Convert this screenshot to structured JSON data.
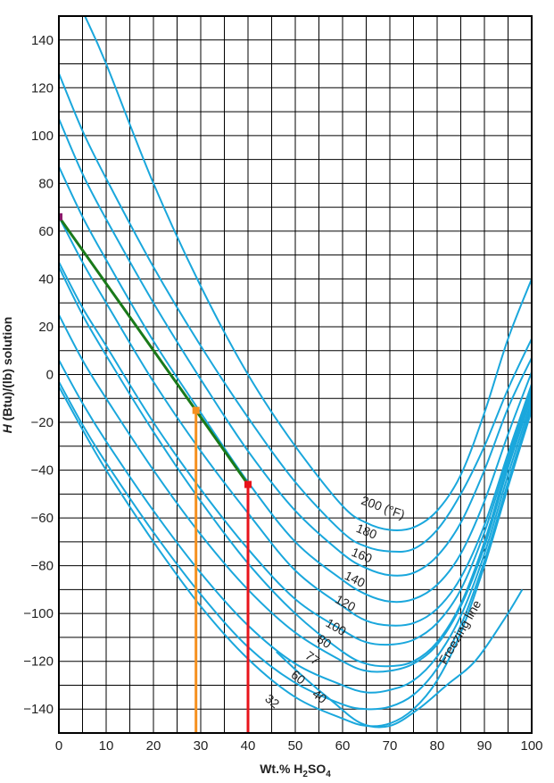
{
  "chart_data": {
    "type": "line",
    "xlabel_prefix": "Wt.% H",
    "xlabel_sub1": "2",
    "xlabel_mid": "SO",
    "xlabel_sub2": "4",
    "ylabel_prefix": "H",
    "ylabel_rest": " (Btu)/(lb) solution",
    "xlim": [
      0,
      100
    ],
    "ylim": [
      -150,
      150
    ],
    "xticks": [
      0,
      10,
      20,
      30,
      40,
      50,
      60,
      70,
      80,
      90,
      100
    ],
    "yticks": [
      140,
      120,
      100,
      80,
      60,
      40,
      20,
      0,
      -20,
      -40,
      -60,
      -80,
      -100,
      -120,
      -140
    ],
    "grid": true,
    "colors": {
      "isotherm": "#1aa7dc",
      "mix_line": "#1a7a1a",
      "orange": "#f5901e",
      "red": "#e8141b",
      "start_point": "#8b1a6b",
      "grid": "#000000"
    },
    "series": [
      {
        "name": "200 (°F)",
        "x": [
          5.5,
          10,
          20,
          30,
          40,
          50,
          60,
          65,
          70,
          75,
          80,
          85,
          90,
          95,
          100
        ],
        "y": [
          150,
          130,
          80,
          37,
          0,
          -30,
          -55,
          -62,
          -65,
          -64,
          -57,
          -42,
          -16,
          15,
          40
        ]
      },
      {
        "name": "180",
        "x": [
          0,
          5,
          10,
          20,
          30,
          40,
          50,
          60,
          65,
          70,
          75,
          80,
          85,
          90,
          95,
          100
        ],
        "y": [
          126,
          102,
          82,
          45,
          12,
          -18,
          -45,
          -66,
          -72,
          -74,
          -73,
          -65,
          -50,
          -30,
          -6,
          15
        ]
      },
      {
        "name": "160",
        "x": [
          0,
          5,
          10,
          20,
          30,
          40,
          50,
          60,
          65,
          70,
          75,
          80,
          85,
          90,
          95,
          100
        ],
        "y": [
          107,
          84,
          65,
          30,
          -2,
          -32,
          -57,
          -75,
          -81,
          -84,
          -83,
          -76,
          -62,
          -40,
          -14,
          7
        ]
      },
      {
        "name": "140",
        "x": [
          0,
          5,
          10,
          20,
          30,
          40,
          50,
          60,
          65,
          70,
          75,
          80,
          85,
          90,
          95,
          100
        ],
        "y": [
          87,
          66,
          48,
          14,
          -16,
          -45,
          -70,
          -86,
          -92,
          -95,
          -94,
          -88,
          -75,
          -53,
          -25,
          1
        ]
      },
      {
        "name": "120",
        "x": [
          0,
          5,
          10,
          20,
          30,
          40,
          50,
          60,
          65,
          70,
          75,
          80,
          85,
          90,
          95,
          100
        ],
        "y": [
          66,
          47,
          30,
          -3,
          -32,
          -58,
          -82,
          -97,
          -103,
          -105,
          -104,
          -98,
          -85,
          -63,
          -33,
          -4
        ]
      },
      {
        "name": "100",
        "x": [
          0,
          5,
          10,
          20,
          30,
          40,
          50,
          60,
          65,
          70,
          75,
          80,
          85,
          90,
          95,
          100
        ],
        "y": [
          47,
          28,
          12,
          -20,
          -48,
          -73,
          -94,
          -107,
          -112,
          -113,
          -111,
          -104,
          -90,
          -66,
          -35,
          -6
        ]
      },
      {
        "name": "80",
        "x": [
          0,
          5,
          10,
          20,
          30,
          40,
          50,
          60,
          65,
          70,
          75,
          80,
          85,
          90,
          95,
          100
        ],
        "y": [
          45,
          25,
          8,
          -24,
          -53,
          -79,
          -100,
          -116,
          -121,
          -122,
          -120,
          -112,
          -96,
          -70,
          -37,
          -7
        ]
      },
      {
        "name": "77",
        "x": [
          0,
          5,
          10,
          20,
          30,
          40,
          50,
          60,
          65,
          70,
          75,
          80,
          85,
          90,
          95,
          100
        ],
        "y": [
          25,
          6,
          -10,
          -40,
          -67,
          -90,
          -108,
          -120,
          -124,
          -124,
          -121,
          -113,
          -97,
          -72,
          -39,
          -9
        ]
      },
      {
        "name": "60",
        "x": [
          0,
          5,
          10,
          20,
          30,
          40,
          50,
          60,
          65,
          70,
          75,
          80,
          85,
          90,
          95,
          100
        ],
        "y": [
          6,
          -12,
          -28,
          -57,
          -83,
          -105,
          -121,
          -130,
          -133,
          -132,
          -128,
          -118,
          -101,
          -75,
          -42,
          -11
        ]
      },
      {
        "name": "40",
        "x": [
          0,
          5,
          10,
          20,
          30,
          40,
          50,
          60,
          65,
          70,
          75,
          80,
          85,
          90,
          95,
          100
        ],
        "y": [
          -3,
          -21,
          -37,
          -66,
          -92,
          -114,
          -129,
          -138,
          -140,
          -139,
          -134,
          -123,
          -105,
          -78,
          -45,
          -13
        ]
      },
      {
        "name": "32",
        "x": [
          0,
          5,
          10,
          20,
          30,
          40,
          50,
          60,
          65,
          70,
          75,
          80,
          85,
          90,
          95,
          100
        ],
        "y": [
          -5,
          -23,
          -40,
          -70,
          -97,
          -119,
          -135,
          -144,
          -147,
          -146,
          -140,
          -128,
          -108,
          -80,
          -47,
          -15
        ]
      }
    ],
    "freezing_line": {
      "name": "Freezing line",
      "x": [
        46,
        52,
        58,
        64,
        70,
        76,
        82,
        88,
        94,
        98
      ],
      "y": [
        -116,
        -127,
        -137,
        -146,
        -147,
        -140,
        -130,
        -120,
        -103,
        -90
      ]
    },
    "mix_line": {
      "x": [
        0,
        29,
        40
      ],
      "y": [
        66,
        -15,
        -46
      ]
    },
    "markers": [
      {
        "x": 0,
        "y": 66,
        "color": "#8b1a6b"
      },
      {
        "x": 29,
        "y": -15,
        "color": "#f5901e"
      },
      {
        "x": 40,
        "y": -46,
        "color": "#e8141b"
      }
    ],
    "vertical_lines": [
      {
        "x": 29,
        "y_top": -15,
        "color": "#f5901e"
      },
      {
        "x": 40,
        "y_top": -46,
        "color": "#e8141b"
      }
    ],
    "labels": [
      {
        "text": "200 (°F)",
        "x": 68.5,
        "y": -56,
        "angle": 20
      },
      {
        "text": "180",
        "x": 65,
        "y": -66,
        "angle": 22
      },
      {
        "text": "160",
        "x": 64,
        "y": -76,
        "angle": 22
      },
      {
        "text": "140",
        "x": 62.5,
        "y": -86,
        "angle": 26
      },
      {
        "text": "120",
        "x": 60.5,
        "y": -96,
        "angle": 28
      },
      {
        "text": "100",
        "x": 58.5,
        "y": -106,
        "angle": 30
      },
      {
        "text": "80",
        "x": 56,
        "y": -112,
        "angle": 34
      },
      {
        "text": "77",
        "x": 53.5,
        "y": -119,
        "angle": 36
      },
      {
        "text": "60",
        "x": 50.5,
        "y": -127,
        "angle": 38
      },
      {
        "text": "40",
        "x": 55,
        "y": -135,
        "angle": 38
      },
      {
        "text": "32",
        "x": 45,
        "y": -137,
        "angle": 40
      },
      {
        "text": "Freezing line",
        "x": 85,
        "y": -108,
        "angle": -60
      }
    ]
  }
}
